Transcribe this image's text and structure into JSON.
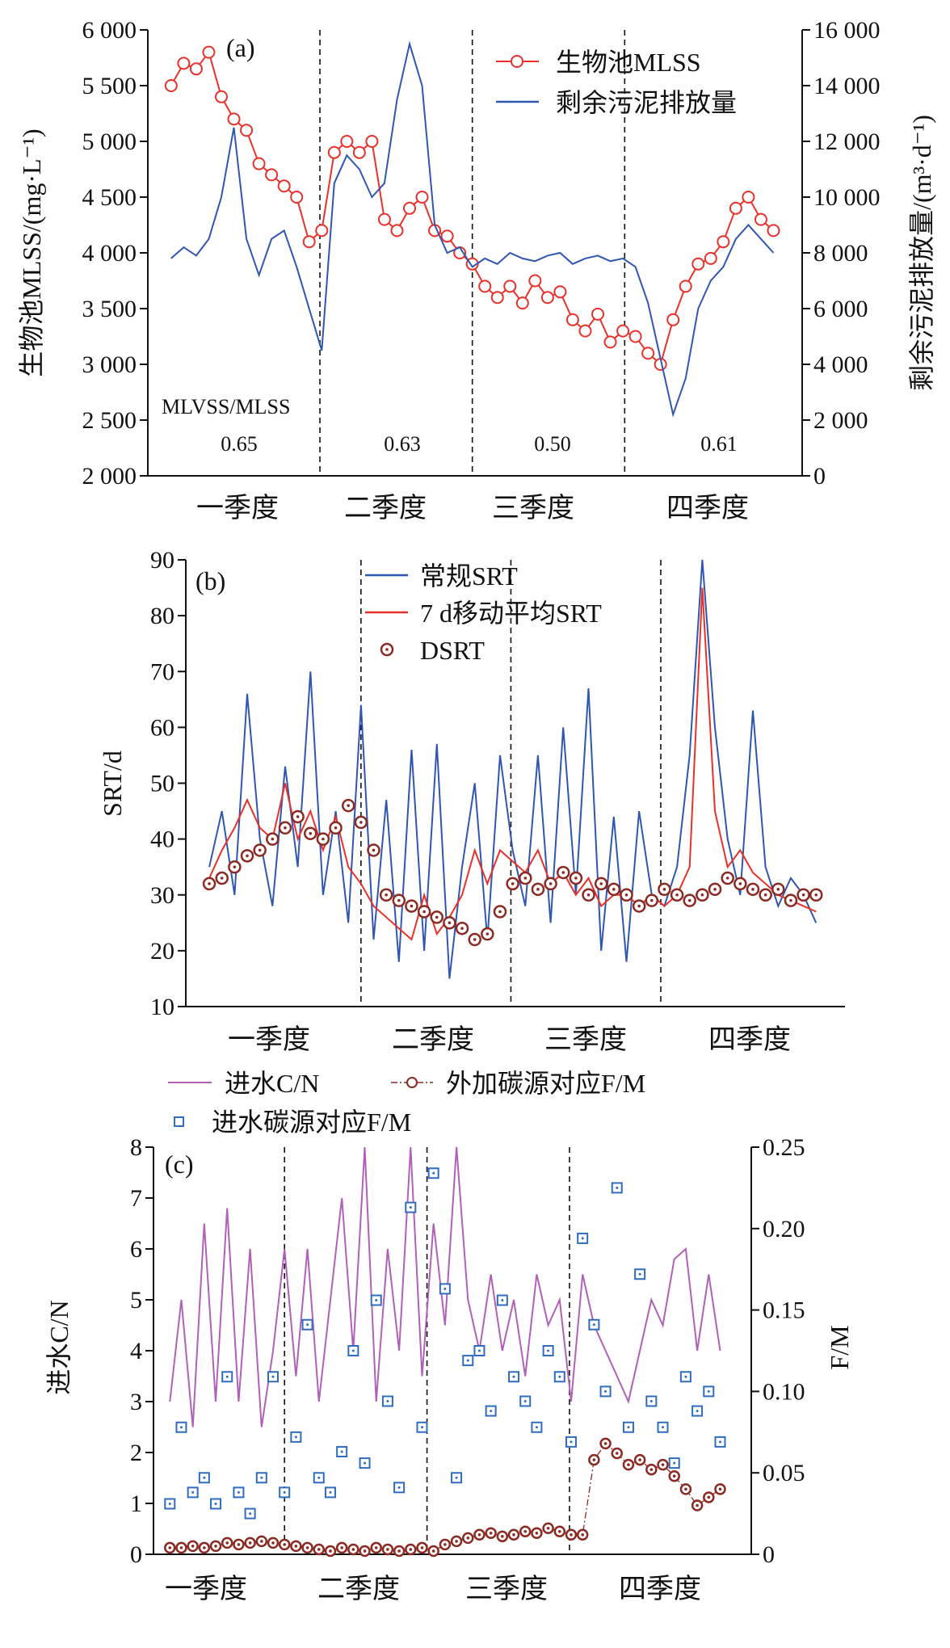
{
  "chart_data": [
    {
      "panel": "(a)",
      "type": "line",
      "xlabel_categories": [
        "一季度",
        "二季度",
        "三季度",
        "四季度"
      ],
      "x_unit": "day of year",
      "xlim": [
        0,
        365
      ],
      "dividers": [
        96,
        181,
        266
      ],
      "ylabel": "生物池MLSS/(mg·L⁻¹)",
      "ylim": [
        2000,
        6000
      ],
      "yticks": [
        {
          "v": 2000,
          "t": "2 000"
        },
        {
          "v": 2500,
          "t": "2 500"
        },
        {
          "v": 3000,
          "t": "3 000"
        },
        {
          "v": 3500,
          "t": "3 500"
        },
        {
          "v": 4000,
          "t": "4 000"
        },
        {
          "v": 4500,
          "t": "4 500"
        },
        {
          "v": 5000,
          "t": "5 000"
        },
        {
          "v": 5500,
          "t": "5 500"
        },
        {
          "v": 6000,
          "t": "6 000"
        }
      ],
      "y2label": "剩余污泥排放量/(m³·d⁻¹)",
      "y2lim": [
        0,
        16000
      ],
      "y2ticks": [
        {
          "v": 0,
          "t": "0"
        },
        {
          "v": 2000,
          "t": "2 000"
        },
        {
          "v": 4000,
          "t": "4 000"
        },
        {
          "v": 6000,
          "t": "6 000"
        },
        {
          "v": 8000,
          "t": "8 000"
        },
        {
          "v": 10000,
          "t": "10 000"
        },
        {
          "v": 12000,
          "t": "12 000"
        },
        {
          "v": 14000,
          "t": "14 000"
        },
        {
          "v": 16000,
          "t": "16 000"
        }
      ],
      "x": [
        13,
        20,
        27,
        34,
        41,
        48,
        55,
        62,
        69,
        76,
        83,
        90,
        97,
        104,
        111,
        118,
        125,
        132,
        139,
        146,
        153,
        160,
        167,
        174,
        181,
        188,
        195,
        202,
        209,
        216,
        223,
        230,
        237,
        244,
        251,
        258,
        265,
        272,
        279,
        286,
        293,
        300,
        307,
        314,
        321,
        328,
        335,
        342,
        349
      ],
      "series": [
        {
          "name": "生物池MLSS",
          "axis": "left",
          "color": "#e8312a",
          "style": "line-circle",
          "values": [
            5500,
            5700,
            5650,
            5800,
            5400,
            5200,
            5100,
            4800,
            4700,
            4600,
            4500,
            4100,
            4200,
            4900,
            5000,
            4900,
            5000,
            4300,
            4200,
            4400,
            4500,
            4200,
            4150,
            4000,
            3900,
            3700,
            3600,
            3700,
            3550,
            3750,
            3600,
            3650,
            3400,
            3300,
            3450,
            3200,
            3300,
            3250,
            3100,
            3000,
            3400,
            3700,
            3900,
            3950,
            4100,
            4400,
            4500,
            4300,
            4200
          ]
        },
        {
          "name": "剩余污泥排放量",
          "axis": "right",
          "color": "#2f56b0",
          "style": "line",
          "values": [
            7800,
            8200,
            7900,
            8500,
            10000,
            12500,
            8500,
            7200,
            8500,
            8800,
            7500,
            6000,
            4500,
            10500,
            11500,
            11000,
            10000,
            10500,
            13500,
            15500,
            14000,
            9000,
            8000,
            8200,
            7500,
            7800,
            7600,
            8000,
            7800,
            7700,
            7900,
            8000,
            7600,
            7800,
            7900,
            7700,
            7800,
            7500,
            6200,
            4200,
            2200,
            3500,
            6000,
            7000,
            7500,
            8500,
            9000,
            8500,
            8000
          ]
        }
      ],
      "annotations": {
        "ratio_label": "MLVSS/MLSS",
        "ratios": [
          "0.65",
          "0.63",
          "0.50",
          "0.61"
        ]
      }
    },
    {
      "panel": "(b)",
      "type": "line",
      "xlabel_categories": [
        "一季度",
        "二季度",
        "三季度",
        "四季度"
      ],
      "xlim": [
        0,
        365
      ],
      "dividers": [
        97,
        180,
        263
      ],
      "ylabel": "SRT/d",
      "ylim": [
        10,
        90
      ],
      "yticks": [
        {
          "v": 10,
          "t": "10"
        },
        {
          "v": 20,
          "t": "20"
        },
        {
          "v": 30,
          "t": "30"
        },
        {
          "v": 40,
          "t": "40"
        },
        {
          "v": 50,
          "t": "50"
        },
        {
          "v": 60,
          "t": "60"
        },
        {
          "v": 70,
          "t": "70"
        },
        {
          "v": 80,
          "t": "80"
        },
        {
          "v": 90,
          "t": "90"
        }
      ],
      "x": [
        13,
        20,
        27,
        34,
        41,
        48,
        55,
        62,
        69,
        76,
        83,
        90,
        97,
        104,
        111,
        118,
        125,
        132,
        139,
        146,
        153,
        160,
        167,
        174,
        181,
        188,
        195,
        202,
        209,
        216,
        223,
        230,
        237,
        244,
        251,
        258,
        265,
        272,
        279,
        286,
        293,
        300,
        307,
        314,
        321,
        328,
        335,
        342,
        349
      ],
      "series": [
        {
          "name": "常规SRT",
          "color": "#2f56b0",
          "style": "line",
          "values": [
            35,
            45,
            30,
            66,
            40,
            28,
            53,
            35,
            70,
            30,
            45,
            25,
            64,
            22,
            47,
            18,
            56,
            20,
            57,
            15,
            35,
            50,
            22,
            55,
            38,
            28,
            55,
            25,
            60,
            30,
            67,
            20,
            44,
            18,
            45,
            30,
            28,
            35,
            55,
            90,
            60,
            40,
            30,
            63,
            35,
            28,
            33,
            30,
            25
          ]
        },
        {
          "name": "7 d移动平均SRT",
          "color": "#e8312a",
          "style": "line",
          "values": [
            33,
            38,
            42,
            47,
            42,
            40,
            50,
            40,
            45,
            38,
            44,
            35,
            32,
            28,
            26,
            24,
            22,
            30,
            23,
            26,
            30,
            38,
            32,
            38,
            36,
            34,
            38,
            32,
            34,
            30,
            33,
            28,
            30,
            30,
            28,
            30,
            28,
            30,
            35,
            85,
            45,
            35,
            38,
            34,
            32,
            30,
            29,
            28,
            27
          ]
        },
        {
          "name": "DSRT",
          "color": "#8b2a22",
          "style": "dotted-circle",
          "values": [
            32,
            33,
            35,
            37,
            38,
            40,
            42,
            44,
            41,
            40,
            42,
            46,
            43,
            38,
            30,
            29,
            28,
            27,
            26,
            25,
            24,
            22,
            23,
            27,
            32,
            33,
            31,
            32,
            34,
            33,
            30,
            32,
            31,
            30,
            28,
            29,
            31,
            30,
            29,
            30,
            31,
            33,
            32,
            31,
            30,
            31,
            29,
            30,
            30
          ]
        }
      ]
    },
    {
      "panel": "(c)",
      "type": "line",
      "xlabel_categories": [
        "一季度",
        "二季度",
        "三季度",
        "四季度"
      ],
      "xlim": [
        0,
        365
      ],
      "dividers": [
        80,
        167,
        254
      ],
      "ylabel": "进水C/N",
      "ylim": [
        0,
        8
      ],
      "yticks": [
        {
          "v": 0,
          "t": "0"
        },
        {
          "v": 1,
          "t": "1"
        },
        {
          "v": 2,
          "t": "2"
        },
        {
          "v": 3,
          "t": "3"
        },
        {
          "v": 4,
          "t": "4"
        },
        {
          "v": 5,
          "t": "5"
        },
        {
          "v": 6,
          "t": "6"
        },
        {
          "v": 7,
          "t": "7"
        },
        {
          "v": 8,
          "t": "8"
        }
      ],
      "y2label": "F/M",
      "y2lim": [
        0,
        0.25
      ],
      "y2ticks": [
        {
          "v": 0,
          "t": "0"
        },
        {
          "v": 0.05,
          "t": "0.05"
        },
        {
          "v": 0.1,
          "t": "0.10"
        },
        {
          "v": 0.15,
          "t": "0.15"
        },
        {
          "v": 0.2,
          "t": "0.20"
        },
        {
          "v": 0.25,
          "t": "0.25"
        }
      ],
      "x": [
        10,
        17,
        24,
        31,
        38,
        45,
        52,
        59,
        66,
        73,
        80,
        87,
        94,
        101,
        108,
        115,
        122,
        129,
        136,
        143,
        150,
        157,
        164,
        171,
        178,
        185,
        192,
        199,
        206,
        213,
        220,
        227,
        234,
        241,
        248,
        255,
        262,
        269,
        276,
        283,
        290,
        297,
        304,
        311,
        318,
        325,
        332,
        339,
        346
      ],
      "series": [
        {
          "name": "进水C/N",
          "axis": "left",
          "color": "#b060b8",
          "style": "line",
          "values": [
            3,
            5,
            2.5,
            6.5,
            3,
            6.8,
            3,
            6,
            2.5,
            4,
            6,
            3.5,
            6,
            3,
            5,
            7,
            4,
            8,
            3,
            6,
            4,
            8,
            3.5,
            6.5,
            4.5,
            8,
            5,
            4,
            5.5,
            4,
            5,
            3.5,
            5.5,
            4.5,
            5,
            3,
            5.5,
            4.5,
            4,
            3.5,
            3,
            4,
            5,
            4.5,
            5.8,
            6,
            4,
            5.5,
            4
          ]
        },
        {
          "name": "进水碳源对应F/M",
          "axis": "right",
          "color": "#2f6cc0",
          "style": "dotted-square",
          "values": [
            0.031,
            0.078,
            0.038,
            0.047,
            0.031,
            0.109,
            0.038,
            0.025,
            0.047,
            0.109,
            0.038,
            0.072,
            0.141,
            0.047,
            0.038,
            0.063,
            0.125,
            0.056,
            0.156,
            0.094,
            0.041,
            0.213,
            0.078,
            0.234,
            0.163,
            0.047,
            0.119,
            0.125,
            0.088,
            0.156,
            0.109,
            0.094,
            0.078,
            0.125,
            0.109,
            0.069,
            0.194,
            0.141,
            0.1,
            0.225,
            0.078,
            0.172,
            0.094,
            0.078,
            0.056,
            0.109,
            0.088,
            0.1,
            0.069
          ]
        },
        {
          "name": "外加碳源对应F/M",
          "axis": "right",
          "color": "#8b2a22",
          "style": "dashdot-circle",
          "values": [
            0.004,
            0.004,
            0.005,
            0.004,
            0.005,
            0.007,
            0.006,
            0.007,
            0.008,
            0.007,
            0.006,
            0.005,
            0.004,
            0.003,
            0.002,
            0.004,
            0.003,
            0.002,
            0.004,
            0.003,
            0.002,
            0.003,
            0.004,
            0.002,
            0.006,
            0.008,
            0.01,
            0.012,
            0.013,
            0.011,
            0.012,
            0.014,
            0.013,
            0.016,
            0.014,
            0.012,
            0.012,
            0.058,
            0.068,
            0.062,
            0.055,
            0.058,
            0.052,
            0.055,
            0.048,
            0.04,
            0.03,
            0.035,
            0.04
          ]
        }
      ]
    }
  ]
}
